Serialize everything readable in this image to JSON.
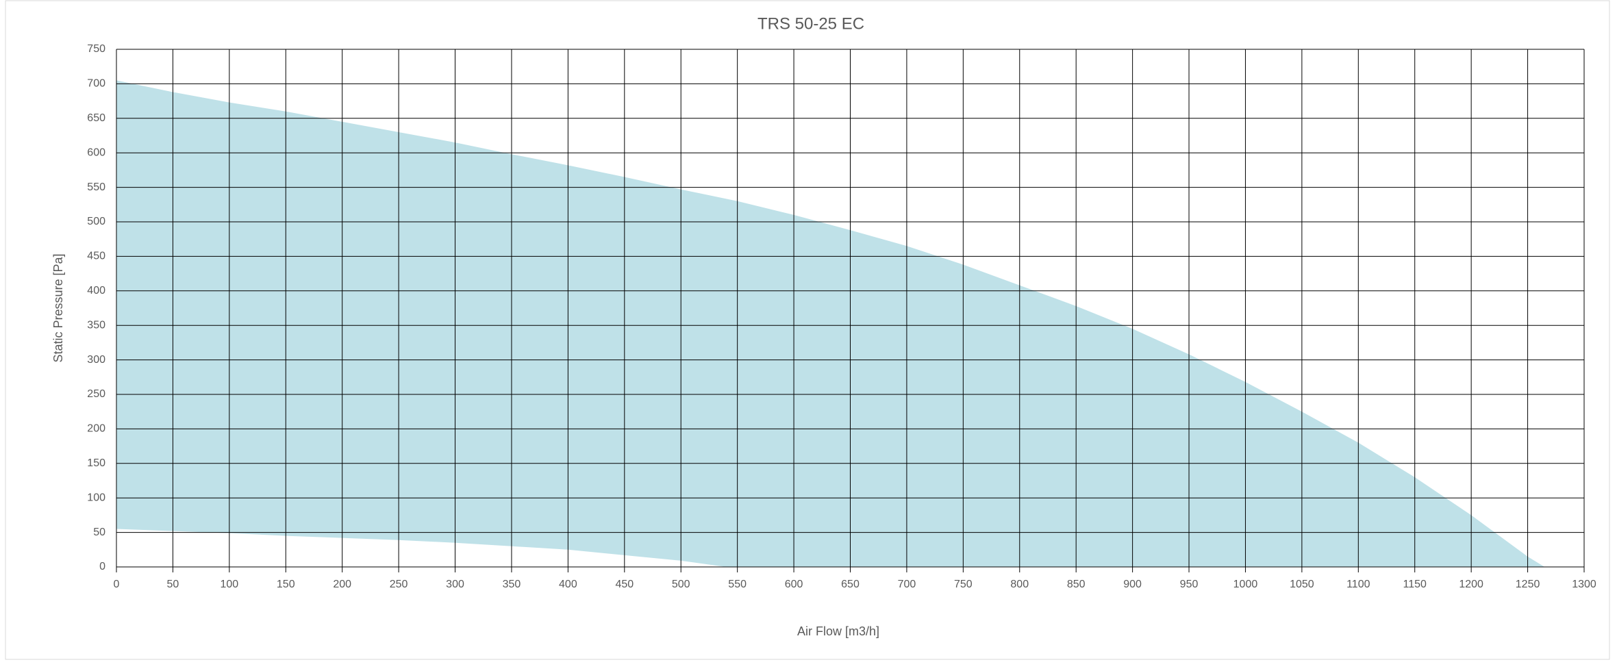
{
  "chart_data": {
    "type": "area",
    "title": "TRS 50-25 EC",
    "x_label": "Air Flow [m3/h]",
    "y_label": "Static Pressure [Pa]",
    "series": [
      {
        "color": "#bfe1e8",
        "x": [
          0,
          50,
          100,
          150,
          200,
          250,
          300,
          350,
          400,
          450,
          500,
          550,
          600,
          650,
          700,
          750,
          800,
          850,
          900,
          950,
          1000,
          1050,
          1100,
          1150,
          1200,
          1250,
          1265
        ],
        "values": [
          705,
          688,
          673,
          660,
          645,
          630,
          615,
          598,
          582,
          565,
          547,
          530,
          510,
          488,
          465,
          438,
          408,
          378,
          345,
          308,
          268,
          225,
          180,
          130,
          75,
          15,
          0
        ]
      },
      {
        "color": "#ffffff",
        "x": [
          0,
          50,
          100,
          150,
          200,
          250,
          300,
          350,
          400,
          450,
          500,
          540
        ],
        "values": [
          55,
          52,
          49,
          45,
          42,
          39,
          35,
          30,
          25,
          17,
          9,
          0
        ]
      }
    ],
    "xlim": [
      0,
      1300
    ],
    "xticks": [
      0,
      50,
      100,
      150,
      200,
      250,
      300,
      350,
      400,
      450,
      500,
      550,
      600,
      650,
      700,
      750,
      800,
      850,
      900,
      950,
      1000,
      1050,
      1100,
      1150,
      1200,
      1250,
      1300
    ],
    "ylim": [
      0,
      750
    ],
    "yticks": [
      0,
      50,
      100,
      150,
      200,
      250,
      300,
      350,
      400,
      450,
      500,
      550,
      600,
      650,
      700,
      750
    ],
    "grid": true
  }
}
